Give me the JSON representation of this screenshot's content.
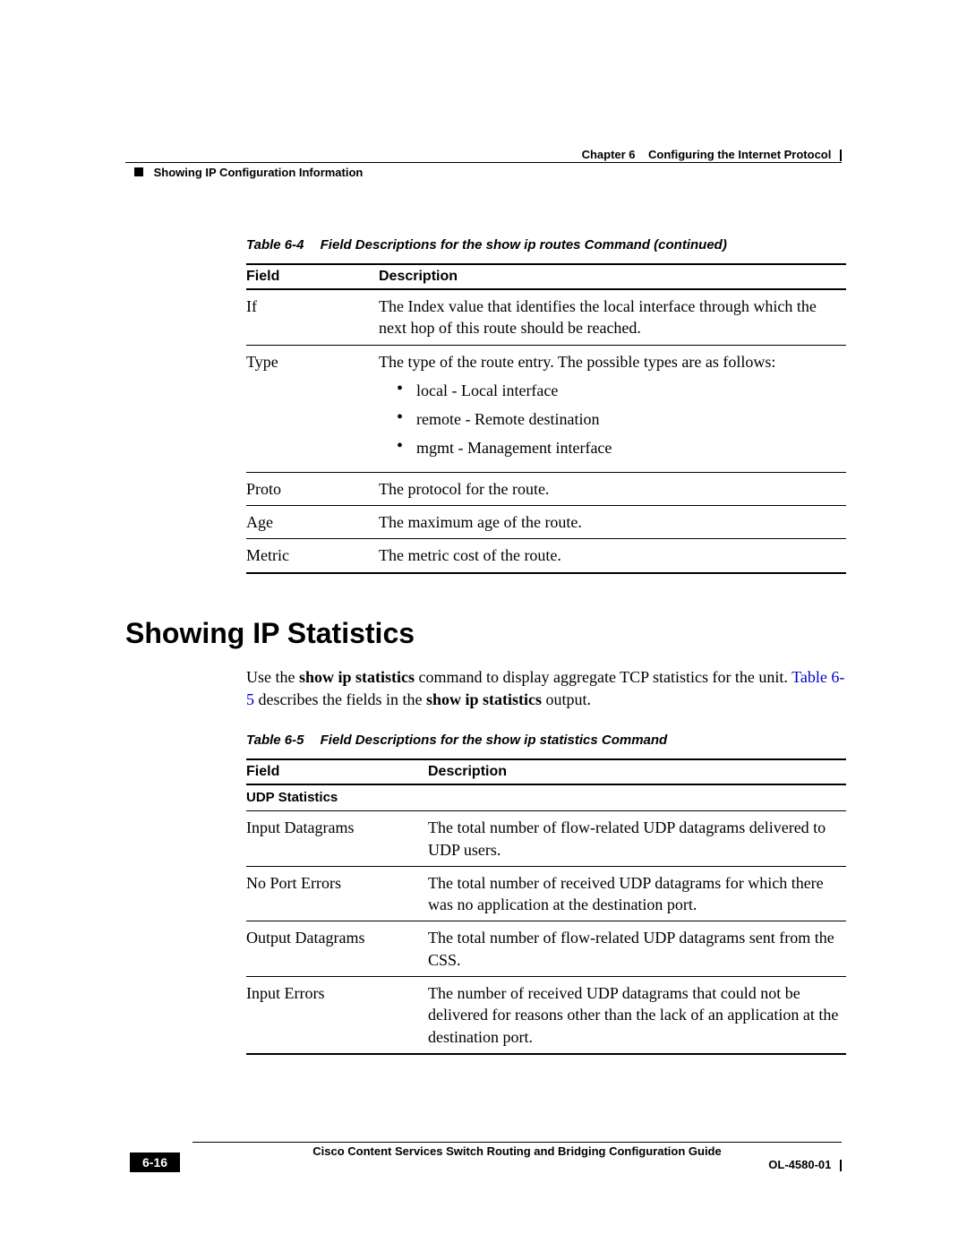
{
  "header": {
    "chapter_label": "Chapter 6",
    "chapter_title": "Configuring the Internet Protocol",
    "section_title": "Showing IP Configuration Information"
  },
  "table1": {
    "caption_num": "Table 6-4",
    "caption_text": "Field Descriptions for the show ip routes Command (continued)",
    "col_field": "Field",
    "col_desc": "Description",
    "rows": {
      "r0": {
        "field": "If",
        "desc": "The Index value that identifies the local interface through which the next hop of this route should be reached."
      },
      "r1": {
        "field": "Type",
        "intro": "The type of the route entry. The possible types are as follows:",
        "b0": "local - Local interface",
        "b1": "remote - Remote destination",
        "b2": "mgmt - Management interface"
      },
      "r2": {
        "field": "Proto",
        "desc": "The protocol for the route."
      },
      "r3": {
        "field": "Age",
        "desc": "The maximum age of the route."
      },
      "r4": {
        "field": "Metric",
        "desc": "The metric cost of the route."
      }
    }
  },
  "section_heading": "Showing IP Statistics",
  "paragraph": {
    "p1": "Use the ",
    "p2_bold": "show ip statistics",
    "p3": " command to display aggregate TCP statistics for the unit. ",
    "p4_link": "Table 6-5",
    "p5": " describes the fields in the ",
    "p6_bold": "show ip statistics",
    "p7": " output."
  },
  "table2": {
    "caption_num": "Table 6-5",
    "caption_text": "Field Descriptions for the show ip statistics Command",
    "col_field": "Field",
    "col_desc": "Description",
    "subhead": "UDP Statistics",
    "rows": {
      "r0": {
        "field": "Input Datagrams",
        "desc": "The total number of flow-related UDP datagrams delivered to UDP users."
      },
      "r1": {
        "field": "No Port Errors",
        "desc": "The total number of received UDP datagrams for which there was no application at the destination port."
      },
      "r2": {
        "field": "Output Datagrams",
        "desc": "The total number of flow-related UDP datagrams sent from the CSS."
      },
      "r3": {
        "field": "Input Errors",
        "desc": "The number of received UDP datagrams that could not be delivered for reasons other than the lack of an application at the destination port."
      }
    }
  },
  "footer": {
    "guide": "Cisco Content Services Switch Routing and Bridging Configuration Guide",
    "page": "6-16",
    "docnum": "OL-4580-01"
  }
}
